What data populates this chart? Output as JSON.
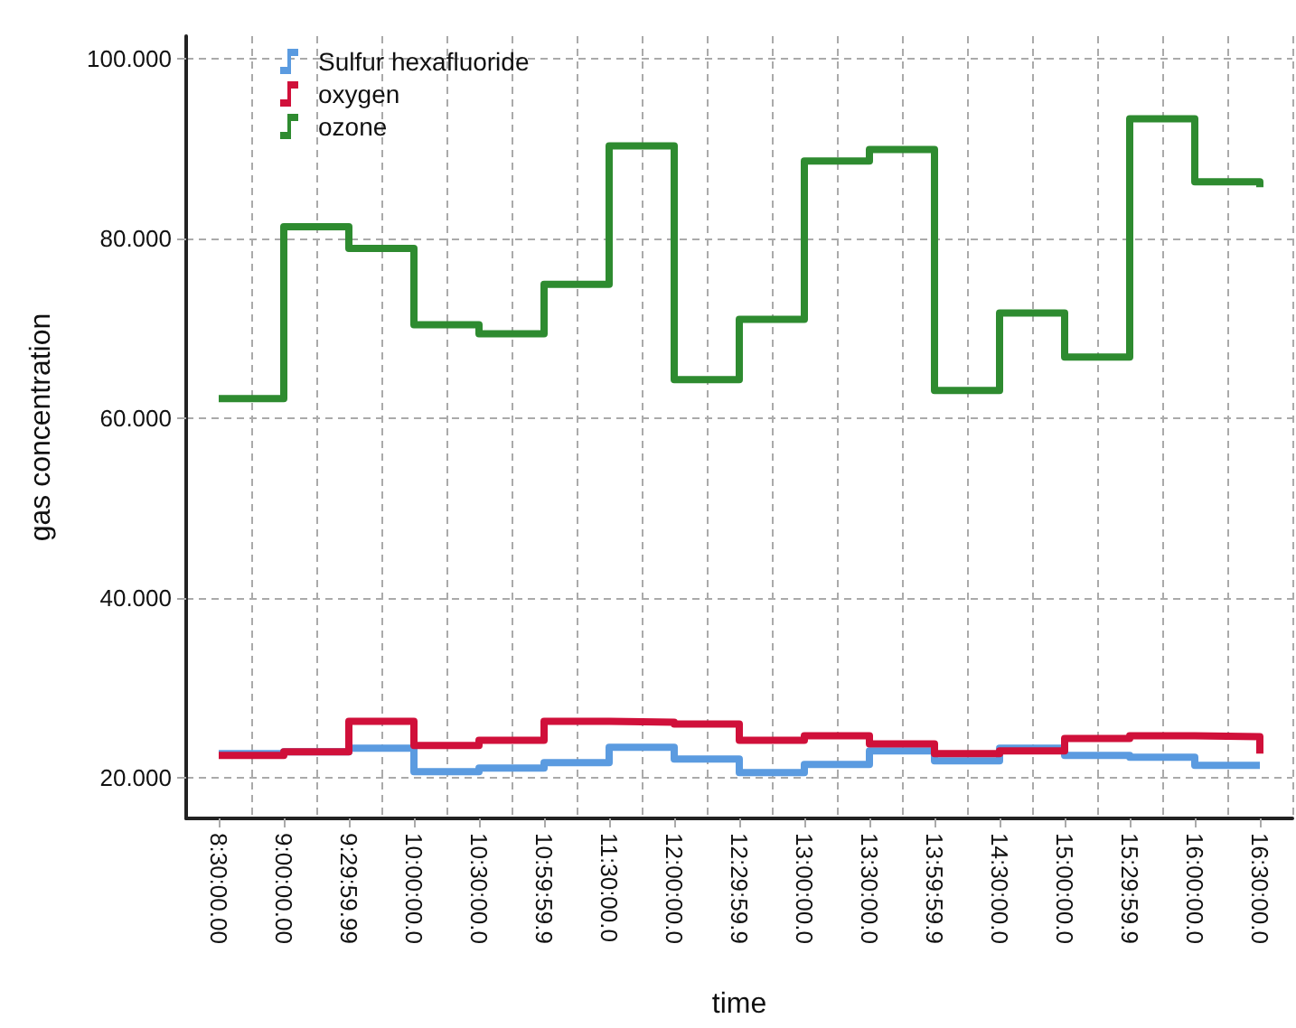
{
  "chart_data": {
    "type": "step",
    "xlabel": "time",
    "ylabel": "gas concentration",
    "categories": [
      "8:30:00.00",
      "9:00:00.00",
      "9:29:59.99",
      "10:00:00.0",
      "10:30:00.0",
      "10:59:59.9",
      "11:30:00.0",
      "12:00:00.0",
      "12:29:59.9",
      "13:00:00.0",
      "13:30:00.0",
      "13:59:59.9",
      "14:30:00.0",
      "15:00:00.0",
      "15:29:59.9",
      "16:00:00.0",
      "16:30:00.0"
    ],
    "series": [
      {
        "name": "Sulfur hexafluoride",
        "color": "#5b9be0",
        "values": [
          22.7,
          22.9,
          23.3,
          20.7,
          21.1,
          21.7,
          23.4,
          22.1,
          20.6,
          21.5,
          23.0,
          21.9,
          23.3,
          22.5,
          22.3,
          21.4,
          21.4
        ]
      },
      {
        "name": "oxygen",
        "color": "#d0103a",
        "values": [
          22.5,
          22.9,
          26.3,
          23.6,
          24.2,
          26.3,
          26.2,
          26.0,
          24.2,
          24.7,
          23.8,
          22.7,
          23.0,
          24.4,
          24.7,
          24.6,
          22.7
        ]
      },
      {
        "name": "ozone",
        "color": "#2e8b30",
        "values": [
          62.2,
          81.3,
          78.9,
          70.4,
          69.4,
          74.9,
          90.3,
          64.3,
          71.0,
          88.6,
          89.9,
          63.1,
          71.7,
          66.8,
          93.3,
          86.3,
          85.7
        ]
      }
    ],
    "ylim": [
      15.5,
      102.5
    ],
    "yticks": [
      {
        "value": 20,
        "label": "20.000"
      },
      {
        "value": 40,
        "label": "40.000"
      },
      {
        "value": 60,
        "label": "60.000"
      },
      {
        "value": 80,
        "label": "80.000"
      },
      {
        "value": 100,
        "label": "100.000"
      }
    ],
    "grid": true,
    "legend": "top left",
    "marker": "none",
    "line_style": "solid"
  }
}
